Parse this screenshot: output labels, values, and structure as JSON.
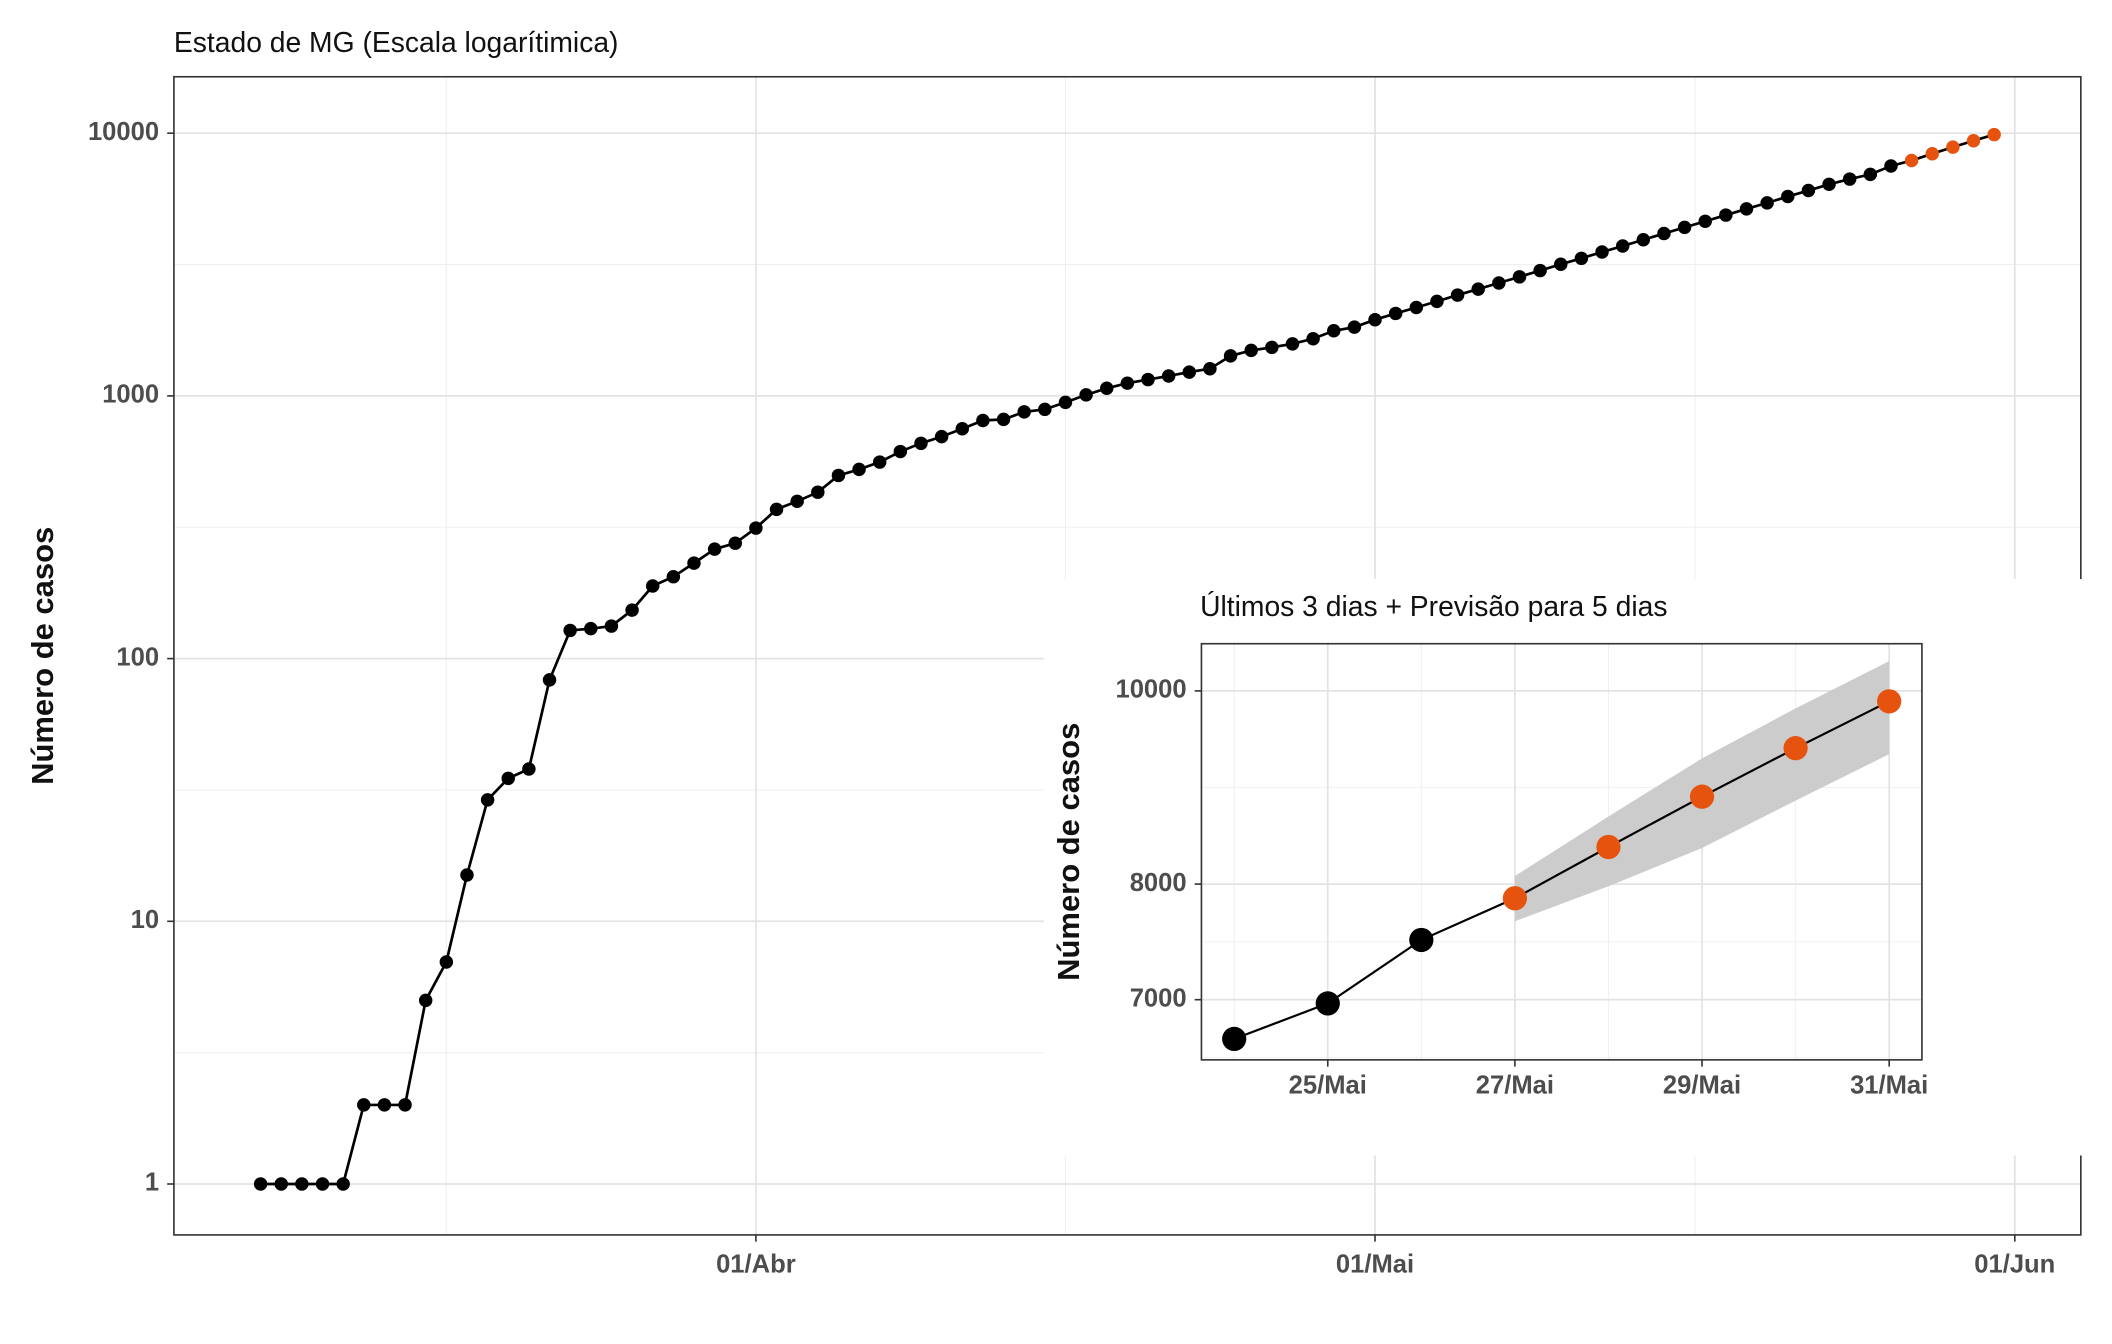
{
  "chart_data": [
    {
      "type": "line",
      "title": "Estado de MG (Escala logarítimica)",
      "y_label": "Número de casos",
      "log_y": true,
      "grid": true,
      "x": [
        "03-08",
        "03-09",
        "03-10",
        "03-11",
        "03-12",
        "03-13",
        "03-14",
        "03-15",
        "03-16",
        "03-17",
        "03-18",
        "03-19",
        "03-20",
        "03-21",
        "03-22",
        "03-23",
        "03-24",
        "03-25",
        "03-26",
        "03-27",
        "03-28",
        "03-29",
        "03-30",
        "03-31",
        "04-01",
        "04-02",
        "04-03",
        "04-04",
        "04-05",
        "04-06",
        "04-07",
        "04-08",
        "04-09",
        "04-10",
        "04-11",
        "04-12",
        "04-13",
        "04-14",
        "04-15",
        "04-16",
        "04-17",
        "04-18",
        "04-19",
        "04-20",
        "04-21",
        "04-22",
        "04-23",
        "04-24",
        "04-25",
        "04-26",
        "04-27",
        "04-28",
        "04-29",
        "04-30",
        "05-01",
        "05-02",
        "05-03",
        "05-04",
        "05-05",
        "05-06",
        "05-07",
        "05-08",
        "05-09",
        "05-10",
        "05-11",
        "05-12",
        "05-13",
        "05-14",
        "05-15",
        "05-16",
        "05-17",
        "05-18",
        "05-19",
        "05-20",
        "05-21",
        "05-22",
        "05-23",
        "05-24",
        "05-25",
        "05-26",
        "05-27",
        "05-28",
        "05-29",
        "05-30",
        "05-31"
      ],
      "values": [
        1,
        1,
        1,
        1,
        1,
        2,
        2,
        2,
        5,
        7,
        15,
        29,
        35,
        38,
        83,
        128,
        130,
        133,
        153,
        189,
        205,
        231,
        261,
        275,
        314,
        370,
        397,
        430,
        498,
        525,
        560,
        614,
        660,
        700,
        750,
        806,
        814,
        869,
        889,
        945,
        1009,
        1069,
        1118,
        1154,
        1191,
        1232,
        1269,
        1420,
        1490,
        1530,
        1578,
        1650,
        1770,
        1827,
        1950,
        2060,
        2170,
        2290,
        2420,
        2550,
        2690,
        2840,
        3000,
        3170,
        3340,
        3530,
        3720,
        3930,
        4150,
        4380,
        4620,
        4880,
        5150,
        5430,
        5740,
        6050,
        6390,
        6690,
        6970,
        7500,
        7870,
        8350,
        8850,
        9360,
        9880
      ],
      "color": "#000000",
      "forecast": {
        "from": "05-27",
        "color": "#e5530f"
      },
      "ylim": [
        0.64,
        16400
      ],
      "yticks": [
        1,
        10,
        100,
        1000,
        10000
      ],
      "xticks": [
        {
          "value": "04-01",
          "label": "01/Abr"
        },
        {
          "value": "05-01",
          "label": "01/Mai"
        },
        {
          "value": "06-01",
          "label": "01/Jun"
        }
      ]
    },
    {
      "type": "line",
      "title": "Últimos 3 dias + Previsão para 5 dias",
      "y_label": "Número de casos",
      "log_y": true,
      "grid": true,
      "x": [
        "05-24",
        "05-25",
        "05-26",
        "05-27",
        "05-28",
        "05-29",
        "05-30",
        "05-31"
      ],
      "values": [
        6690,
        6970,
        7500,
        7870,
        8350,
        8850,
        9360,
        9880
      ],
      "lower": [
        null,
        null,
        null,
        7664,
        7980,
        8340,
        8810,
        9295
      ],
      "upper": [
        null,
        null,
        null,
        8075,
        8650,
        9250,
        9800,
        10350
      ],
      "band_color": "#cccccc",
      "color": "#000000",
      "forecast": {
        "from": "05-27",
        "color": "#e5530f"
      },
      "ylim": [
        6530,
        10560
      ],
      "yticks": [
        7000,
        8000,
        10000
      ],
      "xticks": [
        {
          "value": "05-25",
          "label": "25/Mai"
        },
        {
          "value": "05-27",
          "label": "27/Mai"
        },
        {
          "value": "05-29",
          "label": "29/Mai"
        },
        {
          "value": "05-31",
          "label": "31/Mai"
        }
      ]
    }
  ]
}
